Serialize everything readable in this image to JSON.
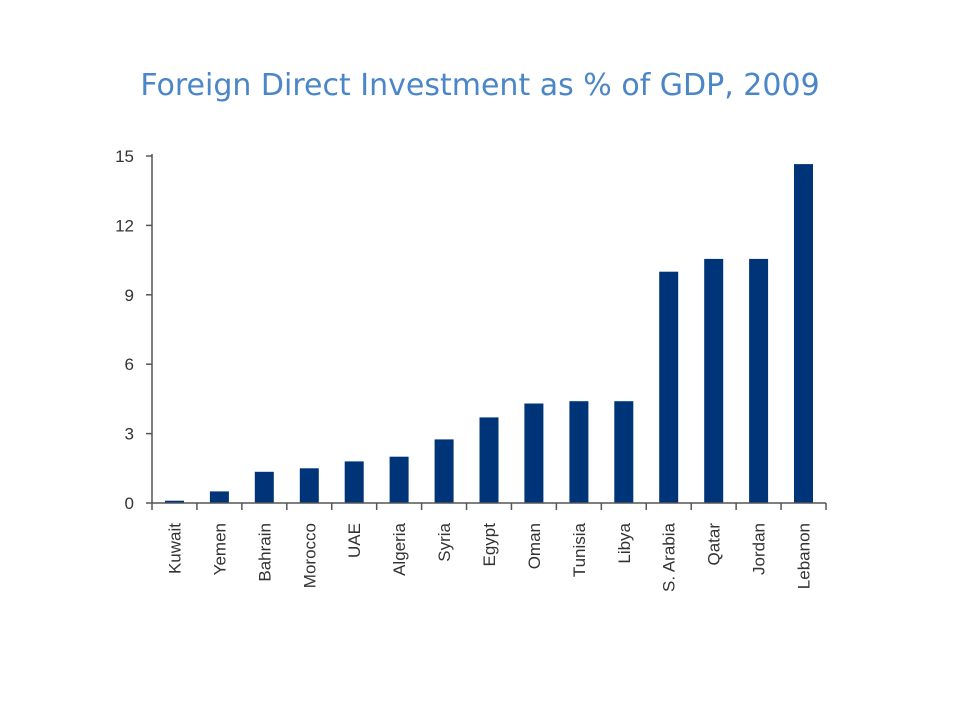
{
  "page": {
    "title": "Foreign Direct Investment as % of GDP, 2009",
    "title_color": "#4a86c8"
  },
  "chart_data": {
    "type": "bar",
    "title": "Foreign Direct Investment as % of GDP, 2009",
    "xlabel": "",
    "ylabel": "",
    "ylim": [
      0,
      15
    ],
    "yticks": [
      0,
      3,
      6,
      9,
      12,
      15
    ],
    "categories": [
      "Kuwait",
      "Yemen",
      "Bahrain",
      "Morocco",
      "UAE",
      "Algeria",
      "Syria",
      "Egypt",
      "Oman",
      "Tunisia",
      "Libya",
      "S. Arabia",
      "Qatar",
      "Jordan",
      "Lebanon"
    ],
    "values": [
      0.1,
      0.5,
      1.35,
      1.5,
      1.8,
      2.0,
      2.75,
      3.7,
      4.3,
      4.4,
      4.4,
      10.0,
      10.55,
      10.55,
      14.65
    ],
    "grid": false,
    "bar_color": "#003478",
    "axis_color": "#555555",
    "tick_label_color": "#333333"
  }
}
